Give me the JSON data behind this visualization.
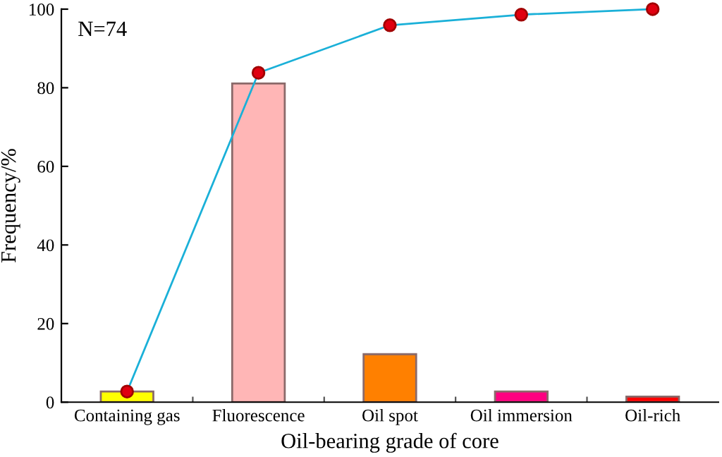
{
  "chart_data": {
    "type": "bar",
    "xlabel": "Oil-bearing grade of core",
    "ylabel": "Frequency/%",
    "annotations": [
      "N=74"
    ],
    "categories": [
      "Containing gas",
      "Fluorescence",
      "Oil spot",
      "Oil immersion",
      "Oil-rich"
    ],
    "series": [
      {
        "colors": [
          "#ffff00",
          "#ffb6b6",
          "#ff8000",
          "#ff0080",
          "#ff0000"
        ],
        "values": [
          2.7,
          81.1,
          12.2,
          2.7,
          1.4
        ]
      },
      {
        "type": "line",
        "color": "#1ab0d8",
        "marker": "circle",
        "values": [
          2.7,
          83.8,
          95.9,
          98.6,
          100
        ]
      }
    ],
    "ylim": [
      0,
      100
    ],
    "yticks": [
      0,
      20,
      40,
      60,
      80,
      100
    ],
    "grid": false,
    "legend": false
  }
}
